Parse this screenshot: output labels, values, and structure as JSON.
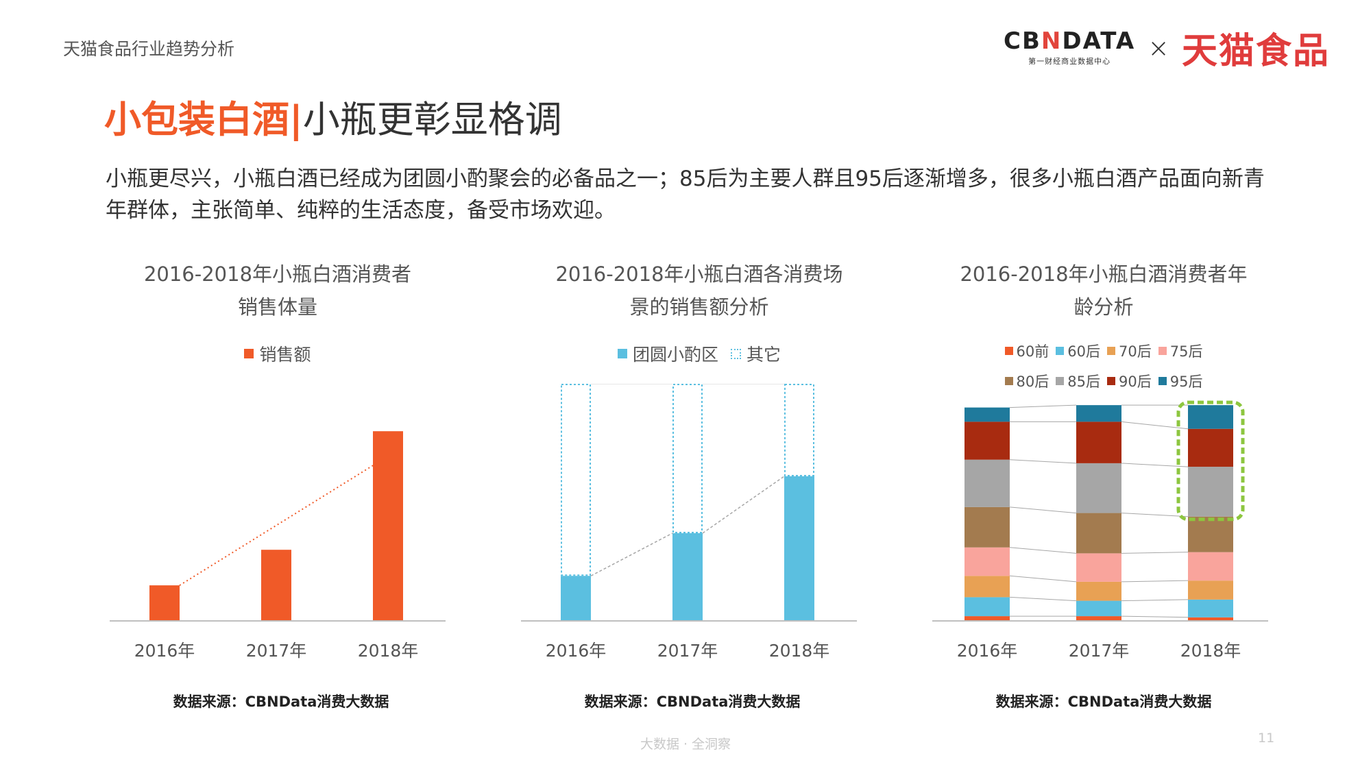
{
  "header": {
    "label": "天猫食品行业趋势分析"
  },
  "brand": {
    "cbn_logo_a": "CB",
    "cbn_logo_x": "N",
    "cbn_logo_b": "DATA",
    "cbn_sub": "第一财经商业数据中心",
    "times": "×",
    "partner": "天猫食品"
  },
  "title": {
    "accent": "小包装白酒|",
    "sub": "小瓶更彰显格调"
  },
  "intro": "小瓶更尽兴，小瓶白酒已经成为团圆小酌聚会的必备品之一；85后为主要人群且95后逐渐增多，很多小瓶白酒产品面向新青年群体，主张简单、纯粹的生活态度，备受市场欢迎。",
  "source_text": "数据来源：CBNData消费大数据",
  "footer": {
    "tagline": "大数据 · 全洞察",
    "page": "11"
  },
  "colors": {
    "accent": "#f05a28",
    "teal": "#5bbfe0",
    "highlight": "#8dc63f"
  },
  "chart_data": [
    {
      "type": "bar",
      "title": "2016-2018年小瓶白酒消费者销售体量",
      "title_lines": [
        "2016-2018年小瓶白酒消费者",
        "销售体量"
      ],
      "categories": [
        "2016年",
        "2017年",
        "2018年"
      ],
      "series": [
        {
          "name": "销售额",
          "color": "#f05a28",
          "values": [
            15,
            30,
            80
          ]
        }
      ],
      "ylim": [
        0,
        100
      ],
      "trend_line": true,
      "grid": false,
      "legend": "top"
    },
    {
      "type": "bar",
      "stacked": true,
      "title": "2016-2018年小瓶白酒各消费场景的销售额分析",
      "title_lines": [
        "2016-2018年小瓶白酒各消费场",
        "景的销售额分析"
      ],
      "categories": [
        "2016年",
        "2017年",
        "2018年"
      ],
      "series": [
        {
          "name": "团圆小酌区",
          "color": "#5bbfe0",
          "values": [
            19,
            37,
            61
          ]
        },
        {
          "name": "其它",
          "color": "#5bbfe0",
          "dashed": true,
          "values": [
            81,
            63,
            39
          ]
        }
      ],
      "ylim": [
        0,
        100
      ],
      "trend_line": true,
      "grid": false,
      "legend": "top"
    },
    {
      "type": "bar",
      "stacked": true,
      "title": "2016-2018年小瓶白酒消费者年龄分析",
      "title_lines": [
        "2016-2018年小瓶白酒消费者年",
        "龄分析"
      ],
      "categories": [
        "2016年",
        "2017年",
        "2018年"
      ],
      "series": [
        {
          "name": "60前",
          "color": "#f05a28",
          "values": [
            2,
            2,
            1.5
          ]
        },
        {
          "name": "60后",
          "color": "#5bbfe0",
          "values": [
            8,
            6.5,
            7.5
          ]
        },
        {
          "name": "70后",
          "color": "#e8a154",
          "values": [
            9,
            8,
            8
          ]
        },
        {
          "name": "75后",
          "color": "#f9a49c",
          "values": [
            12,
            12,
            12
          ]
        },
        {
          "name": "80后",
          "color": "#a37b4f",
          "values": [
            17,
            17,
            15
          ]
        },
        {
          "name": "85后",
          "color": "#a6a6a6",
          "values": [
            20,
            21,
            21
          ]
        },
        {
          "name": "90后",
          "color": "#a82b10",
          "values": [
            16,
            17.5,
            16
          ]
        },
        {
          "name": "95后",
          "color": "#1f7a9c",
          "values": [
            6,
            7,
            10
          ]
        }
      ],
      "ylim": [
        0,
        100
      ],
      "highlight": {
        "category": "2018年",
        "series": [
          "85后",
          "90后",
          "95后"
        ]
      },
      "connectors": true,
      "grid": false,
      "legend": "top"
    }
  ]
}
